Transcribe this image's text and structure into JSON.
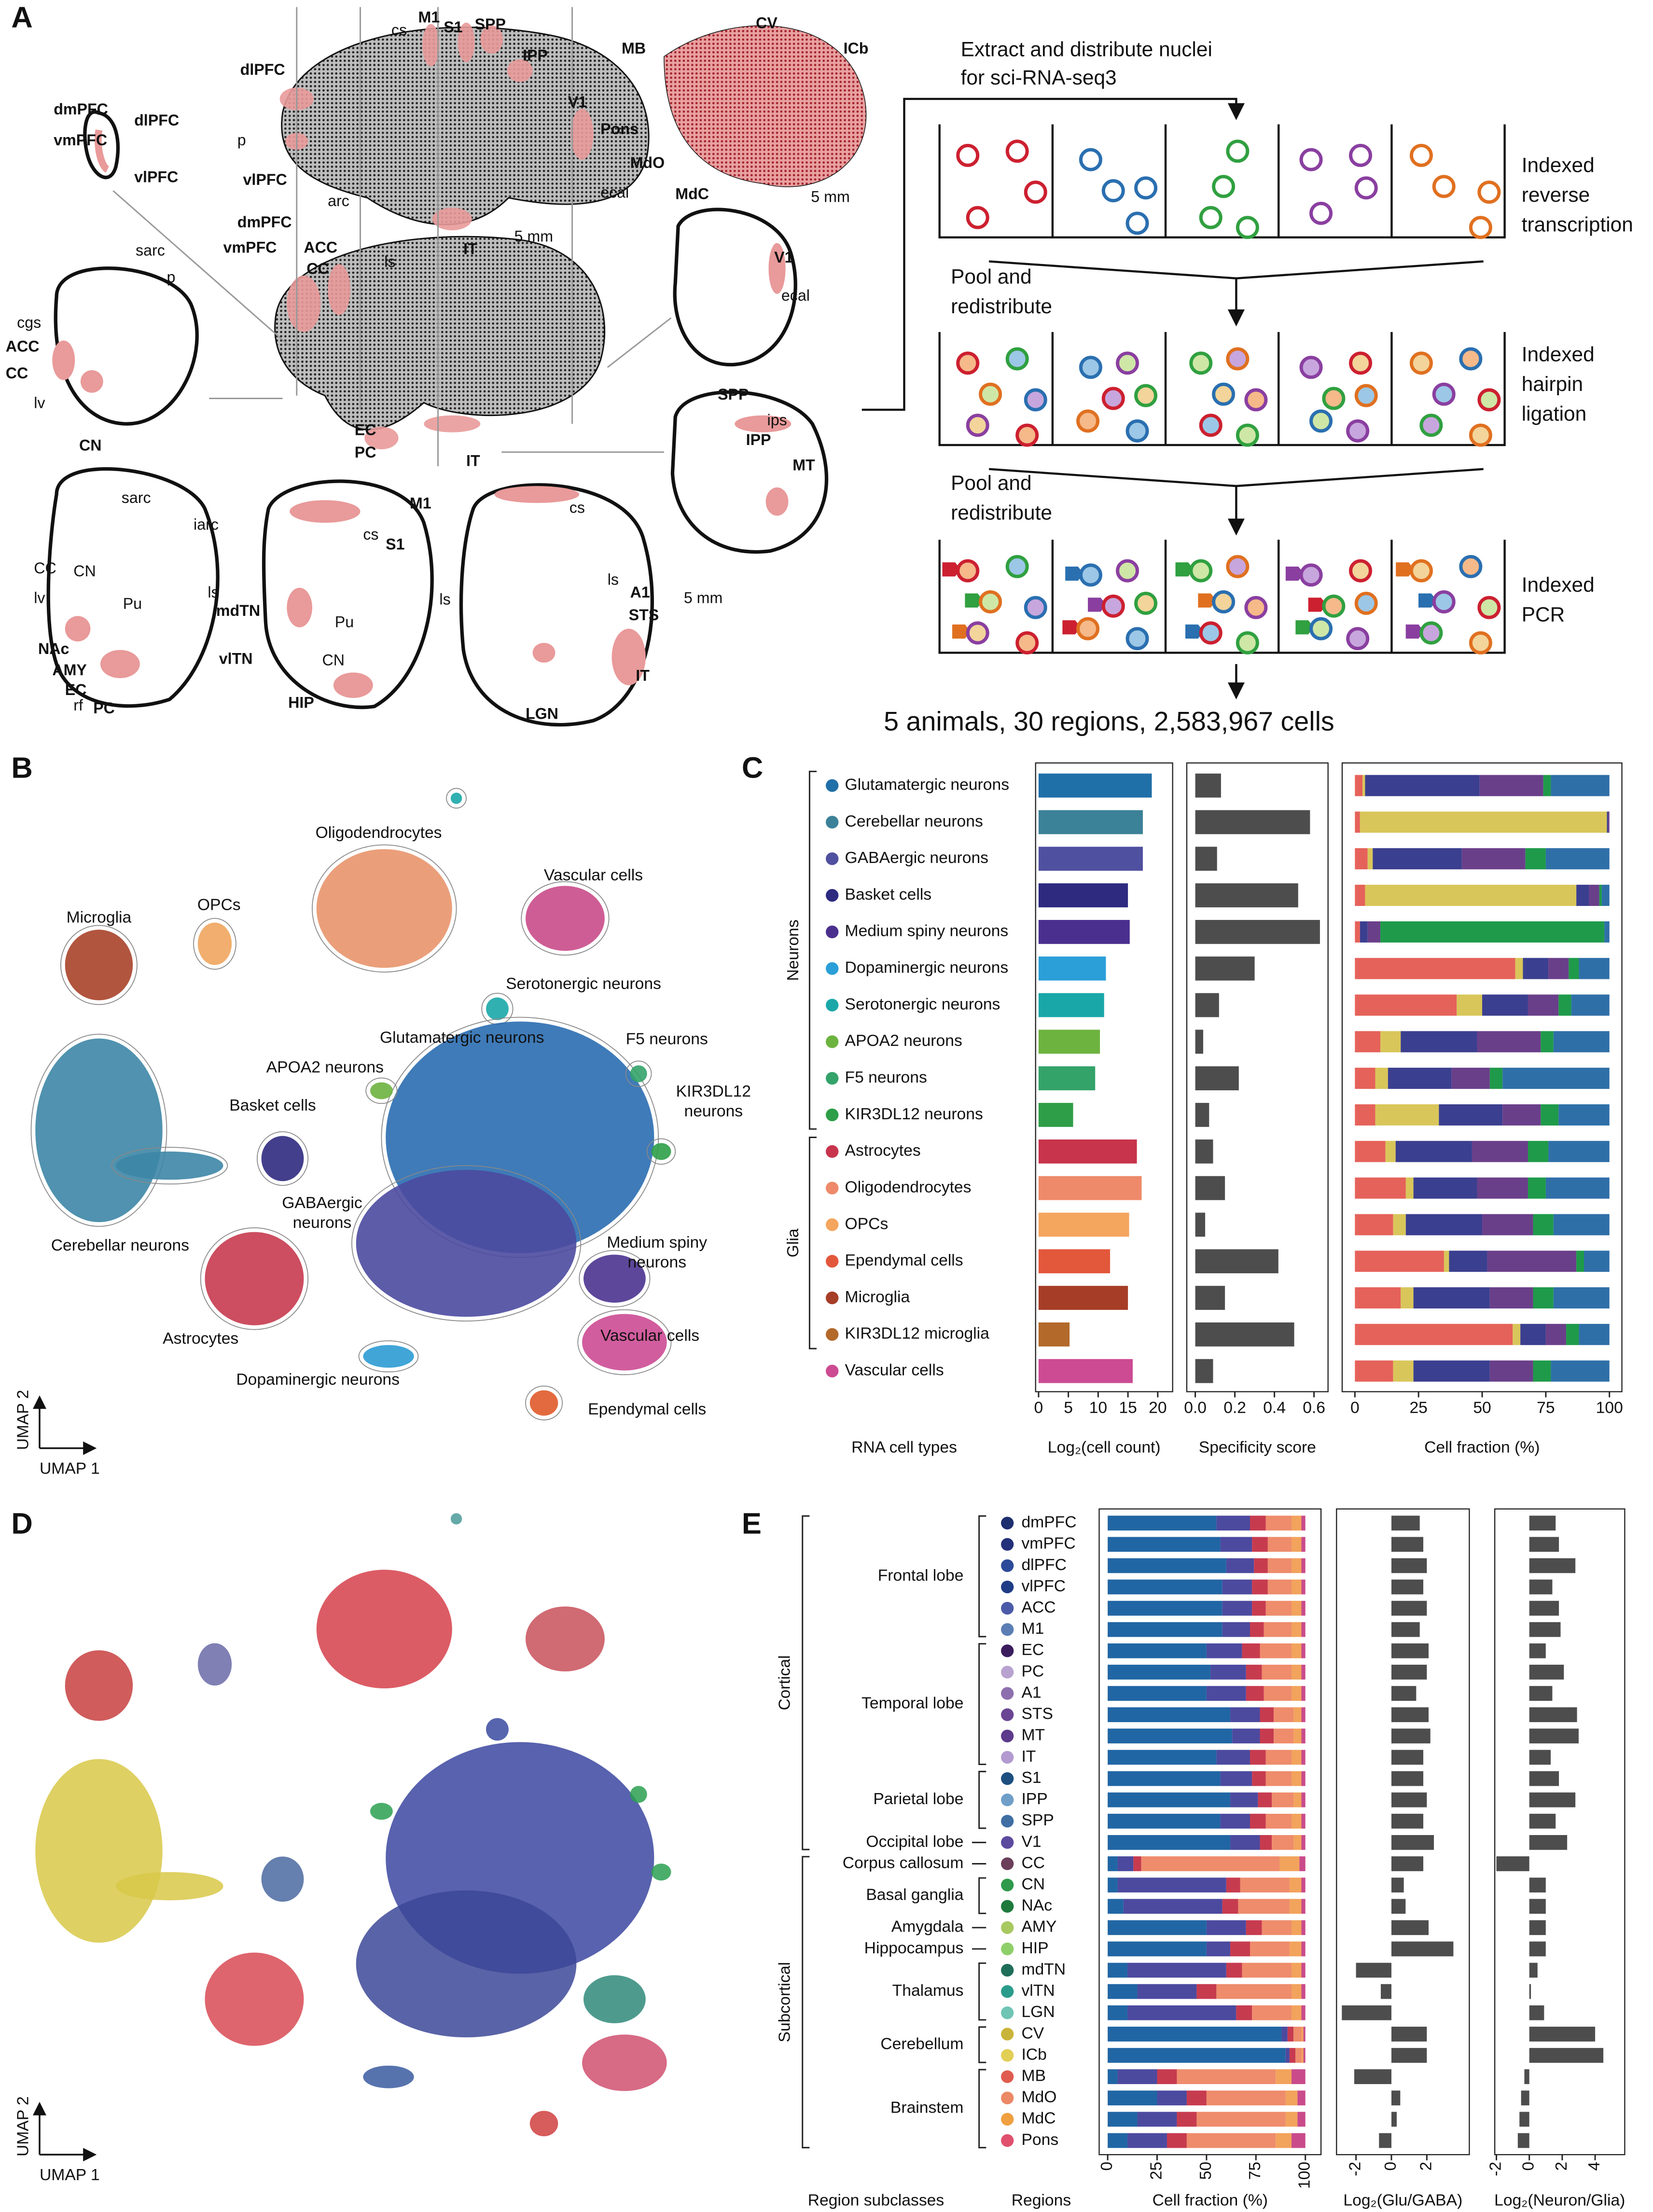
{
  "panel_labels": {
    "a": "A",
    "b": "B",
    "c": "C",
    "d": "D",
    "e": "E"
  },
  "panel_a": {
    "brain_labels": [
      "dlPFC",
      "dmPFC",
      "dlPFC",
      "vmPFC",
      "vlPFC",
      "cs",
      "M1",
      "S1",
      "SPP",
      "IPP",
      "V1",
      "p",
      "vlPFC",
      "arc",
      "ecal",
      "IT",
      "5 mm",
      "MB",
      "CV",
      "ICb",
      "Pons",
      "MdO",
      "MdC",
      "5 mm",
      "dmPFC",
      "ACC",
      "vmPFC",
      "CC",
      "ls",
      "V1",
      "ecal",
      "sarc",
      "p",
      "cgs",
      "ACC",
      "CC",
      "lv",
      "CN",
      "EC",
      "PC",
      "IT",
      "SPP",
      "ips",
      "IPP",
      "MT",
      "sarc",
      "iarc",
      "M1",
      "cs",
      "cs",
      "S1",
      "ls",
      "A1",
      "STS",
      "ls",
      "ls",
      "mdTN",
      "CC",
      "CN",
      "lv",
      "Pu",
      "NAc",
      "AMY",
      "EC",
      "rf",
      "PC",
      "vlTN",
      "Pu",
      "CN",
      "HIP",
      "LGN",
      "IT",
      "5 mm"
    ],
    "flow": {
      "intro": [
        "Extract and distribute nuclei",
        "for sci-RNA-seq3"
      ],
      "steps": [
        [
          "Indexed",
          "reverse",
          "transcription"
        ],
        [
          "Pool and",
          "redistribute"
        ],
        [
          "Indexed",
          "hairpin",
          "ligation"
        ],
        [
          "Pool and",
          "redistribute"
        ],
        [
          "Indexed",
          "PCR"
        ]
      ],
      "summary": "5 animals, 30 regions,  2,583,967 cells"
    }
  },
  "panel_b": {
    "clusters": [
      "Oligodendrocytes",
      "Vascular cells",
      "Microglia",
      "OPCs",
      "Serotonergic neurons",
      "Glutamatergic neurons",
      "APOA2 neurons",
      "F5 neurons",
      "Basket cells",
      [
        "KIR3DL12",
        "neurons"
      ],
      "Cerebellar neurons",
      [
        "GABAergic",
        "neurons"
      ],
      [
        "Medium spiny",
        "neurons"
      ],
      "Astrocytes",
      "Vascular cells",
      "Dopaminergic neurons",
      "Ependymal cells"
    ],
    "x_label": "UMAP 1",
    "y_label": "UMAP 2"
  },
  "panel_d": {
    "x_label": "UMAP 1",
    "y_label": "UMAP 2"
  },
  "chart_data": [
    {
      "type": "bar",
      "category_label": "RNA cell types",
      "groups": [
        "Neurons",
        "Glia"
      ],
      "categories": [
        "Glutamatergic neurons",
        "Cerebellar neurons",
        "GABAergic neurons",
        "Basket cells",
        "Medium spiny neurons",
        "Dopaminergic neurons",
        "Serotonergic neurons",
        "APOA2 neurons",
        "F5 neurons",
        "KIR3DL12 neurons",
        "Astrocytes",
        "Oligodendrocytes",
        "OPCs",
        "Ependymal cells",
        "Microglia",
        "KIR3DL12 microglia",
        "Vascular cells"
      ],
      "category_colors": [
        "#1f6fa8",
        "#3b8197",
        "#5050a0",
        "#2d2a80",
        "#4a2f8f",
        "#2a9fd8",
        "#1aa7a8",
        "#6db33f",
        "#34a36a",
        "#2e9e48",
        "#c7344c",
        "#ee8a6a",
        "#f4a55e",
        "#e3573b",
        "#a63d27",
        "#b3692a",
        "#cc4b93"
      ],
      "values": [
        19,
        17.5,
        17.5,
        15,
        15.3,
        11.3,
        11,
        10.3,
        9.5,
        5.8,
        16.5,
        17.3,
        15.2,
        12,
        15,
        5.2,
        15.8
      ],
      "xlabel": "Log₂(cell count)",
      "xlim": [
        -0.5,
        22.5
      ],
      "xticks": [
        0,
        5,
        10,
        15,
        20
      ]
    },
    {
      "type": "bar",
      "color": "#4d4d4d",
      "values": [
        0.13,
        0.58,
        0.11,
        0.52,
        0.63,
        0.3,
        0.12,
        0.04,
        0.22,
        0.07,
        0.09,
        0.15,
        0.05,
        0.42,
        0.15,
        0.5,
        0.09
      ],
      "xlabel": "Specificity score",
      "xlim": [
        -0.043,
        0.671
      ],
      "xticks": [
        {
          "value": 0,
          "label": "0.0"
        },
        0.2,
        0.4,
        0.6
      ]
    },
    {
      "type": "stacked_bar",
      "xlabel": "Cell fraction (%)",
      "xlim": [
        -5,
        104.9
      ],
      "xticks": [
        0,
        25,
        50,
        75,
        100
      ],
      "series": [
        {
          "color": "#e5625a",
          "values": [
            3,
            2,
            5,
            4,
            2,
            63,
            40,
            10,
            8,
            8,
            12,
            20,
            15,
            35,
            18,
            62,
            15
          ]
        },
        {
          "color": "#d9c65a",
          "values": [
            1,
            97,
            2,
            83,
            0,
            3,
            10,
            8,
            5,
            25,
            4,
            3,
            5,
            2,
            5,
            3,
            8
          ]
        },
        {
          "color": "#3b3f8f",
          "values": [
            45,
            0.5,
            35,
            5,
            3,
            10,
            18,
            30,
            25,
            25,
            30,
            25,
            30,
            15,
            30,
            10,
            30
          ]
        },
        {
          "color": "#6a3f8a",
          "values": [
            25,
            0.5,
            25,
            4,
            5,
            8,
            12,
            25,
            15,
            15,
            22,
            20,
            20,
            35,
            17,
            8,
            17
          ]
        },
        {
          "color": "#1f9a4a",
          "values": [
            3,
            0,
            8,
            1,
            88,
            4,
            5,
            5,
            5,
            7,
            8,
            7,
            8,
            3,
            8,
            5,
            7
          ]
        },
        {
          "color": "#2f6fa8",
          "values": [
            23,
            0,
            25,
            3,
            2,
            12,
            15,
            22,
            42,
            20,
            24,
            25,
            22,
            10,
            22,
            12,
            23
          ]
        }
      ]
    },
    {
      "type": "stacked_bar",
      "subclass_label": "Region subclasses",
      "category_label": "Regions",
      "groups": [
        "Cortical",
        "Subcortical"
      ],
      "subclasses": [
        "Frontal lobe",
        "Temporal lobe",
        "Parietal lobe",
        "Occipital lobe",
        "Corpus callosum",
        "Basal ganglia",
        "Amygdala",
        "Hippocampus",
        "Thalamus",
        "Cerebellum",
        "Brainstem"
      ],
      "categories": [
        "dmPFC",
        "vmPFC",
        "dlPFC",
        "vlPFC",
        "ACC",
        "M1",
        "EC",
        "PC",
        "A1",
        "STS",
        "MT",
        "IT",
        "S1",
        "IPP",
        "SPP",
        "V1",
        "CC",
        "CN",
        "NAc",
        "AMY",
        "HIP",
        "mdTN",
        "vlTN",
        "LGN",
        "CV",
        "ICb",
        "MB",
        "MdO",
        "MdC",
        "Pons"
      ],
      "category_colors": [
        "#1d2f6f",
        "#23307a",
        "#2c4a9a",
        "#1f3c86",
        "#4b5aa8",
        "#5a7eb4",
        "#3b1d5e",
        "#b8a2cf",
        "#8d6fae",
        "#6a4594",
        "#5d3a8a",
        "#b39ad0",
        "#1c4f80",
        "#6f9fc8",
        "#3f6ea3",
        "#5b4a9e",
        "#6b3e5a",
        "#2f9a4b",
        "#1d7a3c",
        "#a8c860",
        "#8fcf6a",
        "#1f6e5a",
        "#2a9c8c",
        "#6fc4b4",
        "#c9b43a",
        "#e2cf56",
        "#e05c4f",
        "#eb8866",
        "#f0a040",
        "#e0506e"
      ],
      "xlabel": "Cell fraction (%)",
      "xlim": [
        -4.3,
        107.9
      ],
      "xticks": [
        0,
        25,
        50,
        75,
        100
      ],
      "series": [
        {
          "color": "#2166a4",
          "values": [
            55,
            57,
            60,
            58,
            58,
            58,
            50,
            52,
            50,
            62,
            63,
            55,
            57,
            62,
            57,
            62,
            5,
            5,
            8,
            50,
            50,
            10,
            15,
            10,
            88,
            90,
            5,
            25,
            15,
            10
          ]
        },
        {
          "color": "#4c4a9f",
          "values": [
            17,
            16,
            14,
            15,
            15,
            14,
            18,
            18,
            20,
            15,
            14,
            17,
            16,
            14,
            15,
            15,
            8,
            55,
            50,
            20,
            12,
            50,
            30,
            55,
            3,
            2,
            20,
            15,
            20,
            20
          ]
        },
        {
          "color": "#c73b4f",
          "values": [
            8,
            8,
            7,
            8,
            7,
            7,
            9,
            8,
            9,
            7,
            7,
            8,
            7,
            7,
            8,
            6,
            4,
            7,
            8,
            8,
            10,
            8,
            10,
            8,
            3,
            3,
            10,
            10,
            10,
            10
          ]
        },
        {
          "color": "#ee8c6c",
          "values": [
            13,
            12,
            12,
            12,
            13,
            14,
            16,
            15,
            14,
            10,
            10,
            13,
            13,
            11,
            13,
            11,
            70,
            25,
            26,
            15,
            20,
            25,
            38,
            20,
            4,
            3,
            50,
            40,
            45,
            45
          ]
        },
        {
          "color": "#f2a35c",
          "values": [
            5,
            5,
            5,
            5,
            5,
            5,
            5,
            5,
            5,
            4,
            4,
            5,
            5,
            4,
            5,
            4,
            10,
            6,
            6,
            5,
            6,
            5,
            5,
            5,
            1,
            1,
            8,
            6,
            6,
            8
          ]
        },
        {
          "color": "#c94b8a",
          "values": [
            2,
            2,
            2,
            2,
            2,
            2,
            2,
            2,
            2,
            2,
            2,
            2,
            2,
            2,
            2,
            2,
            3,
            2,
            2,
            2,
            2,
            2,
            2,
            2,
            1,
            1,
            7,
            4,
            4,
            7
          ]
        }
      ]
    },
    {
      "type": "bar",
      "color": "#4d4d4d",
      "xlabel": "Log₂(Glu/GABA)",
      "xlim": [
        -3.1,
        4.4
      ],
      "xticks": [
        -2,
        0,
        2
      ],
      "values": [
        1.6,
        1.8,
        2,
        1.8,
        2,
        1.6,
        2.1,
        2,
        1.4,
        2.1,
        2.2,
        1.8,
        1.8,
        2,
        1.8,
        2.4,
        1.8,
        0.7,
        0.8,
        2.1,
        3.5,
        -2,
        -0.6,
        -2.8,
        2,
        2,
        -2.1,
        0.5,
        0.3,
        -0.7
      ]
    },
    {
      "type": "bar",
      "color": "#4d4d4d",
      "xlabel": "Log₂(Neuron/Glia)",
      "xlim": [
        -2.1,
        5.8
      ],
      "xticks": [
        -2,
        0,
        2,
        4
      ],
      "values": [
        1.6,
        1.8,
        2.8,
        1.4,
        1.8,
        1.9,
        1,
        2.1,
        1.4,
        2.9,
        3,
        1.3,
        1.8,
        2.8,
        1.6,
        2.3,
        -2,
        1,
        1,
        1,
        1,
        0.5,
        0.1,
        0.9,
        4,
        4.5,
        -0.3,
        -0.5,
        -0.6,
        -0.7
      ]
    }
  ]
}
